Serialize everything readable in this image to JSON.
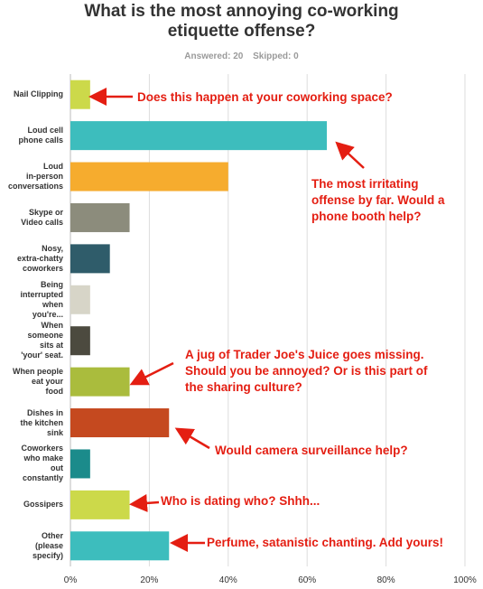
{
  "chart_data": {
    "type": "bar",
    "orientation": "horizontal",
    "title": "What is the most annoying co-working etiquette offense?",
    "answered_label": "Answered: 20",
    "skipped_label": "Skipped: 0",
    "categories": [
      "Nail Clipping",
      "Loud cell phone calls",
      "Loud in-person conversations",
      "Skype or Video calls",
      "Nosy, extra-chatty coworkers",
      "Being interrupted when you're...",
      "When someone sits at 'your' seat.",
      "When people eat your food",
      "Dishes in the kitchen sink",
      "Coworkers who make out constantly",
      "Gossipers",
      "Other (please specify)"
    ],
    "values": [
      5,
      65,
      40,
      15,
      10,
      5,
      5,
      15,
      25,
      5,
      15,
      25
    ],
    "colors": [
      "#ccd94a",
      "#3dbdbd",
      "#f6ac2e",
      "#8c8c7c",
      "#2f5c6a",
      "#d7d5c8",
      "#4c4a3f",
      "#aabc3d",
      "#c5491f",
      "#1b8b8b",
      "#ccd94a",
      "#3dbdbd"
    ],
    "xlim": [
      0,
      100
    ],
    "xticks": [
      "0%",
      "20%",
      "40%",
      "60%",
      "80%",
      "100%"
    ],
    "grid": true,
    "annotations": [
      "Does this happen at your coworking space?",
      "The most irritating offense by far. Would a phone booth help?",
      "A jug of Trader Joe's Juice goes missing. Should you be annoyed? Or is this part of the sharing culture?",
      "Would camera surveillance help?",
      "Who is dating who? Shhh...",
      "Perfume, satanistic chanting. Add yours!"
    ]
  },
  "labels": {
    "title_line1": "What is the most annoying co-working",
    "title_line2": "etiquette offense?",
    "category_lines": [
      [
        "Nail Clipping"
      ],
      [
        "Loud cell",
        "phone calls"
      ],
      [
        "Loud",
        "in-person",
        "conversations"
      ],
      [
        "Skype or",
        "Video calls"
      ],
      [
        "Nosy,",
        "extra-chatty",
        "coworkers"
      ],
      [
        "Being",
        "interrupted",
        "when",
        "you're..."
      ],
      [
        "When",
        "someone",
        "sits at",
        "'your' seat."
      ],
      [
        "When people",
        "eat your",
        "food"
      ],
      [
        "Dishes in",
        "the kitchen",
        "sink"
      ],
      [
        "Coworkers",
        "who make",
        "out",
        "constantly"
      ],
      [
        "Gossipers"
      ],
      [
        "Other",
        "(please",
        "specify)"
      ]
    ],
    "annotation_lines": [
      [
        "Does this happen at your coworking space?"
      ],
      [
        "The most irritating",
        "offense by far. Would a",
        "phone booth help?"
      ],
      [
        "A jug of Trader Joe's Juice goes missing.",
        "Should you be annoyed? Or is this part of",
        "the sharing culture?"
      ],
      [
        "Would camera surveillance help?"
      ],
      [
        "Who is dating who? Shhh..."
      ],
      [
        "Perfume, satanistic chanting. Add yours!"
      ]
    ]
  }
}
